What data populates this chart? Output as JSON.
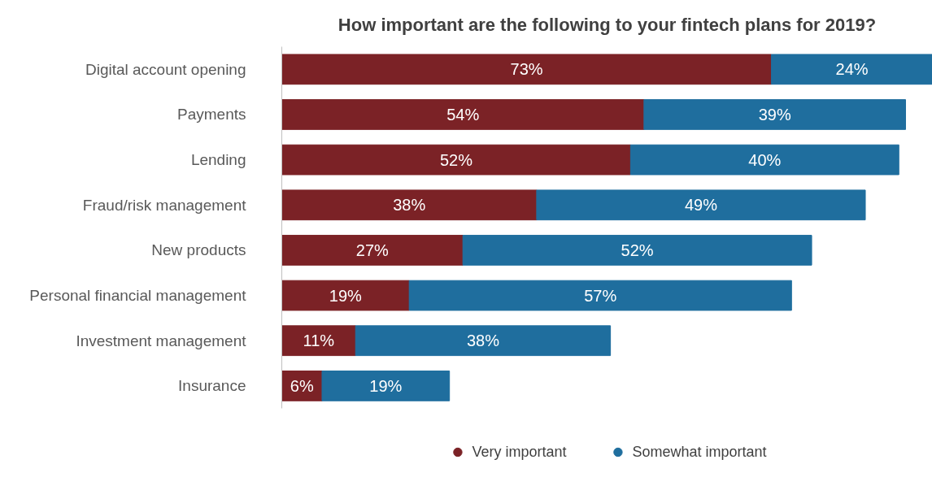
{
  "chart_data": {
    "type": "bar",
    "orientation": "horizontal",
    "stacked": true,
    "title": "How important are the following to your fintech plans for 2019?",
    "categories": [
      "Digital account opening",
      "Payments",
      "Lending",
      "Fraud/risk management",
      "New products",
      "Personal financial management",
      "Investment management",
      "Insurance"
    ],
    "series": [
      {
        "name": "Very important",
        "color": "#7b2226",
        "values": [
          73,
          54,
          52,
          38,
          27,
          19,
          11,
          6
        ],
        "value_labels": [
          "73%",
          "54%",
          "52%",
          "38%",
          "27%",
          "19%",
          "11%",
          "6%"
        ]
      },
      {
        "name": "Somewhat important",
        "color": "#1f6e9e",
        "values": [
          24,
          39,
          40,
          49,
          52,
          57,
          38,
          19
        ],
        "value_labels": [
          "24%",
          "39%",
          "40%",
          "49%",
          "52%",
          "57%",
          "38%",
          "19%"
        ]
      }
    ],
    "legend": "bottom",
    "grid": false
  }
}
